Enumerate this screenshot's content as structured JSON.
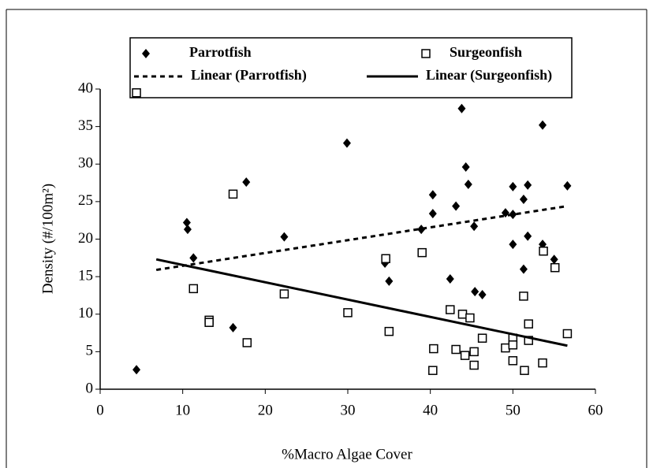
{
  "chart_data": {
    "type": "scatter",
    "x_label": "%Macro Algae Cover",
    "y_label": "Density (#/100m²)",
    "xlim": [
      0,
      60
    ],
    "xticks": [
      0,
      10,
      20,
      30,
      40,
      50,
      60
    ],
    "ylim": [
      0,
      40
    ],
    "yticks": [
      0,
      5,
      10,
      15,
      20,
      25,
      30,
      35,
      40
    ],
    "legend": "top",
    "series": [
      {
        "name": "Parrotfish",
        "color": "#000000",
        "marker": "diamond",
        "x": [
          4.4,
          11.3,
          10.5,
          10.6,
          16.1,
          17.7,
          22.3,
          29.9,
          34.5,
          35.0,
          38.9,
          40.3,
          40.3,
          43.1,
          42.4,
          43.8,
          44.3,
          44.6,
          45.3,
          45.4,
          46.3,
          49.1,
          50.0,
          50.0,
          50.0,
          51.3,
          51.3,
          51.8,
          51.8,
          53.6,
          53.6,
          55.0,
          56.6
        ],
        "values": [
          2.6,
          17.5,
          22.2,
          21.3,
          8.2,
          27.6,
          20.3,
          32.8,
          16.8,
          14.4,
          21.3,
          25.9,
          23.4,
          24.4,
          14.7,
          37.4,
          29.6,
          27.3,
          21.7,
          13.0,
          12.6,
          23.5,
          27.0,
          23.3,
          19.3,
          25.3,
          16.0,
          27.2,
          20.4,
          35.2,
          19.3,
          17.3,
          27.1
        ]
      },
      {
        "name": "Surgeonfish",
        "color": "#000000",
        "marker": "square",
        "x": [
          4.4,
          11.3,
          13.2,
          13.2,
          16.1,
          17.8,
          22.3,
          30.0,
          34.6,
          35.0,
          39.0,
          40.4,
          40.3,
          42.4,
          43.1,
          43.9,
          44.2,
          44.8,
          45.3,
          45.3,
          46.3,
          49.1,
          50.0,
          50.0,
          50.0,
          51.3,
          51.4,
          51.9,
          51.9,
          53.6,
          53.7,
          55.1,
          56.6
        ],
        "values": [
          39.5,
          13.4,
          9.2,
          8.9,
          26.0,
          6.2,
          12.7,
          10.2,
          17.4,
          7.7,
          18.2,
          5.4,
          2.5,
          10.6,
          5.3,
          10.0,
          4.5,
          9.5,
          5.0,
          3.2,
          6.8,
          5.5,
          6.8,
          5.9,
          3.8,
          12.4,
          2.5,
          8.7,
          6.5,
          3.5,
          18.4,
          16.2,
          7.4
        ]
      },
      {
        "name": "Linear (Parrotfish)",
        "color": "#000000",
        "line": "dashed",
        "x": [
          6.8,
          56.6
        ],
        "values": [
          15.9,
          24.4
        ]
      },
      {
        "name": "Linear (Surgeonfish)",
        "color": "#000000",
        "line": "solid",
        "x": [
          6.8,
          56.6
        ],
        "values": [
          17.3,
          5.8
        ]
      }
    ]
  }
}
